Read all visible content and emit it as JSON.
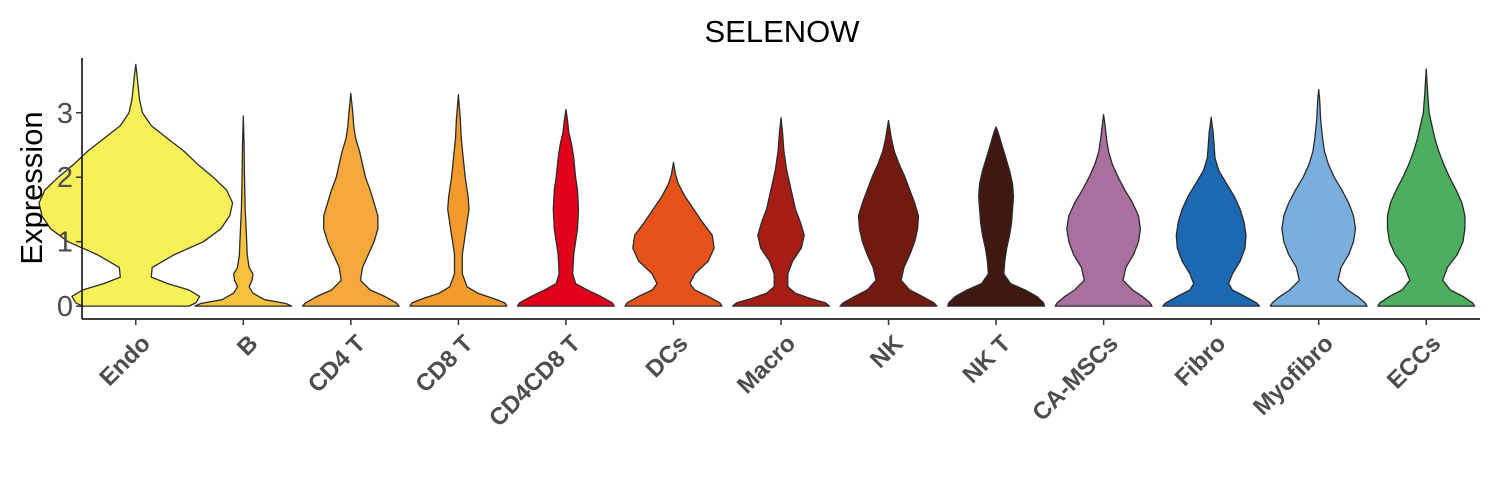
{
  "chart_data": {
    "type": "violin",
    "title": "SELENOW",
    "xlabel": "",
    "ylabel": "Expression",
    "ylim": [
      -0.2,
      3.85
    ],
    "yticks": [
      0,
      1,
      2,
      3
    ],
    "grid": false,
    "legend": "none",
    "categories": [
      "Endo",
      "B",
      "CD4 T",
      "CD8 T",
      "CD4CD8 T",
      "DCs",
      "Macro",
      "NK",
      "NK T",
      "CA-MSCs",
      "Fibro",
      "Myofibro",
      "ECCs"
    ],
    "series": [
      {
        "category": "Endo",
        "color": "#F7F059",
        "max": 3.75,
        "profile": [
          [
            0,
            0.55
          ],
          [
            0.05,
            0.62
          ],
          [
            0.15,
            0.66
          ],
          [
            0.25,
            0.55
          ],
          [
            0.35,
            0.33
          ],
          [
            0.45,
            0.16
          ],
          [
            0.6,
            0.17
          ],
          [
            0.8,
            0.4
          ],
          [
            1.0,
            0.7
          ],
          [
            1.2,
            0.88
          ],
          [
            1.4,
            0.97
          ],
          [
            1.6,
            1.0
          ],
          [
            1.8,
            0.94
          ],
          [
            2.0,
            0.8
          ],
          [
            2.2,
            0.64
          ],
          [
            2.4,
            0.5
          ],
          [
            2.6,
            0.33
          ],
          [
            2.8,
            0.16
          ],
          [
            3.0,
            0.07
          ],
          [
            3.2,
            0.04
          ],
          [
            3.4,
            0.025
          ],
          [
            3.6,
            0.012
          ],
          [
            3.75,
            0.0
          ]
        ]
      },
      {
        "category": "B",
        "color": "#F7C23E",
        "max": 2.95,
        "profile": [
          [
            0,
            0.5
          ],
          [
            0.04,
            0.44
          ],
          [
            0.1,
            0.22
          ],
          [
            0.2,
            0.1
          ],
          [
            0.3,
            0.06
          ],
          [
            0.4,
            0.09
          ],
          [
            0.5,
            0.1
          ],
          [
            0.6,
            0.06
          ],
          [
            0.8,
            0.04
          ],
          [
            1.0,
            0.035
          ],
          [
            1.5,
            0.02
          ],
          [
            2.0,
            0.012
          ],
          [
            2.5,
            0.008
          ],
          [
            2.95,
            0.0
          ]
        ]
      },
      {
        "category": "CD4 T",
        "color": "#F5A93A",
        "max": 3.3,
        "profile": [
          [
            0,
            0.5
          ],
          [
            0.05,
            0.47
          ],
          [
            0.15,
            0.35
          ],
          [
            0.25,
            0.2
          ],
          [
            0.4,
            0.1
          ],
          [
            0.6,
            0.12
          ],
          [
            0.8,
            0.18
          ],
          [
            1.0,
            0.24
          ],
          [
            1.2,
            0.28
          ],
          [
            1.4,
            0.28
          ],
          [
            1.6,
            0.24
          ],
          [
            1.8,
            0.2
          ],
          [
            2.0,
            0.15
          ],
          [
            2.2,
            0.12
          ],
          [
            2.4,
            0.09
          ],
          [
            2.6,
            0.05
          ],
          [
            2.8,
            0.03
          ],
          [
            3.0,
            0.02
          ],
          [
            3.3,
            0.0
          ]
        ]
      },
      {
        "category": "CD8 T",
        "color": "#F39A2C",
        "max": 3.28,
        "profile": [
          [
            0,
            0.5
          ],
          [
            0.05,
            0.48
          ],
          [
            0.12,
            0.36
          ],
          [
            0.2,
            0.2
          ],
          [
            0.3,
            0.09
          ],
          [
            0.5,
            0.04
          ],
          [
            0.8,
            0.04
          ],
          [
            1.0,
            0.06
          ],
          [
            1.2,
            0.08
          ],
          [
            1.5,
            0.11
          ],
          [
            1.7,
            0.1
          ],
          [
            2.0,
            0.07
          ],
          [
            2.3,
            0.05
          ],
          [
            2.6,
            0.03
          ],
          [
            2.9,
            0.02
          ],
          [
            3.28,
            0.0
          ]
        ]
      },
      {
        "category": "CD4CD8 T",
        "color": "#E3001B",
        "max": 3.05,
        "profile": [
          [
            0,
            0.5
          ],
          [
            0.05,
            0.48
          ],
          [
            0.15,
            0.36
          ],
          [
            0.25,
            0.22
          ],
          [
            0.35,
            0.1
          ],
          [
            0.5,
            0.07
          ],
          [
            0.8,
            0.08
          ],
          [
            1.0,
            0.1
          ],
          [
            1.2,
            0.12
          ],
          [
            1.5,
            0.13
          ],
          [
            1.8,
            0.12
          ],
          [
            2.0,
            0.1
          ],
          [
            2.3,
            0.08
          ],
          [
            2.5,
            0.06
          ],
          [
            2.7,
            0.03
          ],
          [
            2.9,
            0.015
          ],
          [
            3.05,
            0.0
          ]
        ]
      },
      {
        "category": "DCs",
        "color": "#E5531B",
        "max": 2.23,
        "profile": [
          [
            0,
            0.5
          ],
          [
            0.05,
            0.48
          ],
          [
            0.15,
            0.36
          ],
          [
            0.25,
            0.22
          ],
          [
            0.35,
            0.17
          ],
          [
            0.5,
            0.22
          ],
          [
            0.7,
            0.36
          ],
          [
            0.9,
            0.42
          ],
          [
            1.1,
            0.4
          ],
          [
            1.3,
            0.3
          ],
          [
            1.5,
            0.21
          ],
          [
            1.7,
            0.12
          ],
          [
            1.9,
            0.05
          ],
          [
            2.05,
            0.02
          ],
          [
            2.23,
            0.0
          ]
        ]
      },
      {
        "category": "Macro",
        "color": "#A51D14",
        "max": 2.92,
        "profile": [
          [
            0,
            0.5
          ],
          [
            0.05,
            0.46
          ],
          [
            0.12,
            0.3
          ],
          [
            0.2,
            0.15
          ],
          [
            0.3,
            0.07
          ],
          [
            0.5,
            0.07
          ],
          [
            0.7,
            0.12
          ],
          [
            0.9,
            0.21
          ],
          [
            1.1,
            0.24
          ],
          [
            1.3,
            0.2
          ],
          [
            1.5,
            0.15
          ],
          [
            1.7,
            0.12
          ],
          [
            1.9,
            0.09
          ],
          [
            2.1,
            0.06
          ],
          [
            2.4,
            0.03
          ],
          [
            2.7,
            0.015
          ],
          [
            2.92,
            0.0
          ]
        ]
      },
      {
        "category": "NK",
        "color": "#731A10",
        "max": 2.88,
        "profile": [
          [
            0,
            0.5
          ],
          [
            0.05,
            0.47
          ],
          [
            0.15,
            0.35
          ],
          [
            0.25,
            0.22
          ],
          [
            0.4,
            0.13
          ],
          [
            0.6,
            0.16
          ],
          [
            0.8,
            0.22
          ],
          [
            1.0,
            0.27
          ],
          [
            1.2,
            0.3
          ],
          [
            1.4,
            0.31
          ],
          [
            1.6,
            0.27
          ],
          [
            1.8,
            0.22
          ],
          [
            2.0,
            0.17
          ],
          [
            2.2,
            0.11
          ],
          [
            2.4,
            0.06
          ],
          [
            2.6,
            0.03
          ],
          [
            2.88,
            0.0
          ]
        ]
      },
      {
        "category": "NK T",
        "color": "#401812",
        "max": 2.78,
        "profile": [
          [
            0,
            0.5
          ],
          [
            0.05,
            0.49
          ],
          [
            0.15,
            0.42
          ],
          [
            0.25,
            0.3
          ],
          [
            0.35,
            0.15
          ],
          [
            0.5,
            0.08
          ],
          [
            0.7,
            0.09
          ],
          [
            0.9,
            0.11
          ],
          [
            1.1,
            0.14
          ],
          [
            1.3,
            0.16
          ],
          [
            1.5,
            0.17
          ],
          [
            1.7,
            0.18
          ],
          [
            1.9,
            0.17
          ],
          [
            2.1,
            0.14
          ],
          [
            2.3,
            0.1
          ],
          [
            2.5,
            0.06
          ],
          [
            2.7,
            0.02
          ],
          [
            2.78,
            0.0
          ]
        ]
      },
      {
        "category": "CA-MSCs",
        "color": "#A8709F",
        "max": 2.97,
        "profile": [
          [
            0,
            0.5
          ],
          [
            0.05,
            0.48
          ],
          [
            0.15,
            0.4
          ],
          [
            0.25,
            0.3
          ],
          [
            0.4,
            0.2
          ],
          [
            0.6,
            0.23
          ],
          [
            0.8,
            0.31
          ],
          [
            1.0,
            0.36
          ],
          [
            1.2,
            0.38
          ],
          [
            1.4,
            0.36
          ],
          [
            1.6,
            0.3
          ],
          [
            1.8,
            0.22
          ],
          [
            2.0,
            0.15
          ],
          [
            2.2,
            0.09
          ],
          [
            2.4,
            0.05
          ],
          [
            2.6,
            0.03
          ],
          [
            2.8,
            0.015
          ],
          [
            2.97,
            0.0
          ]
        ]
      },
      {
        "category": "Fibro",
        "color": "#1C68B2",
        "max": 2.93,
        "profile": [
          [
            0,
            0.5
          ],
          [
            0.05,
            0.47
          ],
          [
            0.15,
            0.35
          ],
          [
            0.25,
            0.22
          ],
          [
            0.35,
            0.18
          ],
          [
            0.5,
            0.22
          ],
          [
            0.7,
            0.3
          ],
          [
            0.9,
            0.35
          ],
          [
            1.1,
            0.36
          ],
          [
            1.3,
            0.34
          ],
          [
            1.5,
            0.3
          ],
          [
            1.7,
            0.24
          ],
          [
            1.9,
            0.16
          ],
          [
            2.1,
            0.08
          ],
          [
            2.3,
            0.04
          ],
          [
            2.5,
            0.03
          ],
          [
            2.7,
            0.02
          ],
          [
            2.93,
            0.0
          ]
        ]
      },
      {
        "category": "Myofibro",
        "color": "#7AAEDD",
        "max": 3.36,
        "profile": [
          [
            0,
            0.5
          ],
          [
            0.05,
            0.48
          ],
          [
            0.15,
            0.4
          ],
          [
            0.25,
            0.3
          ],
          [
            0.4,
            0.2
          ],
          [
            0.6,
            0.23
          ],
          [
            0.8,
            0.31
          ],
          [
            1.0,
            0.36
          ],
          [
            1.2,
            0.38
          ],
          [
            1.4,
            0.36
          ],
          [
            1.6,
            0.31
          ],
          [
            1.8,
            0.24
          ],
          [
            2.0,
            0.16
          ],
          [
            2.2,
            0.1
          ],
          [
            2.4,
            0.06
          ],
          [
            2.6,
            0.04
          ],
          [
            2.9,
            0.02
          ],
          [
            3.2,
            0.01
          ],
          [
            3.36,
            0.0
          ]
        ]
      },
      {
        "category": "ECCs",
        "color": "#4CAE5F",
        "max": 3.68,
        "profile": [
          [
            0,
            0.5
          ],
          [
            0.05,
            0.48
          ],
          [
            0.15,
            0.38
          ],
          [
            0.25,
            0.25
          ],
          [
            0.4,
            0.17
          ],
          [
            0.6,
            0.22
          ],
          [
            0.8,
            0.32
          ],
          [
            1.0,
            0.38
          ],
          [
            1.2,
            0.4
          ],
          [
            1.4,
            0.4
          ],
          [
            1.6,
            0.37
          ],
          [
            1.8,
            0.31
          ],
          [
            2.0,
            0.24
          ],
          [
            2.2,
            0.18
          ],
          [
            2.4,
            0.13
          ],
          [
            2.6,
            0.09
          ],
          [
            2.8,
            0.06
          ],
          [
            3.0,
            0.03
          ],
          [
            3.3,
            0.015
          ],
          [
            3.68,
            0.0
          ]
        ]
      }
    ]
  }
}
